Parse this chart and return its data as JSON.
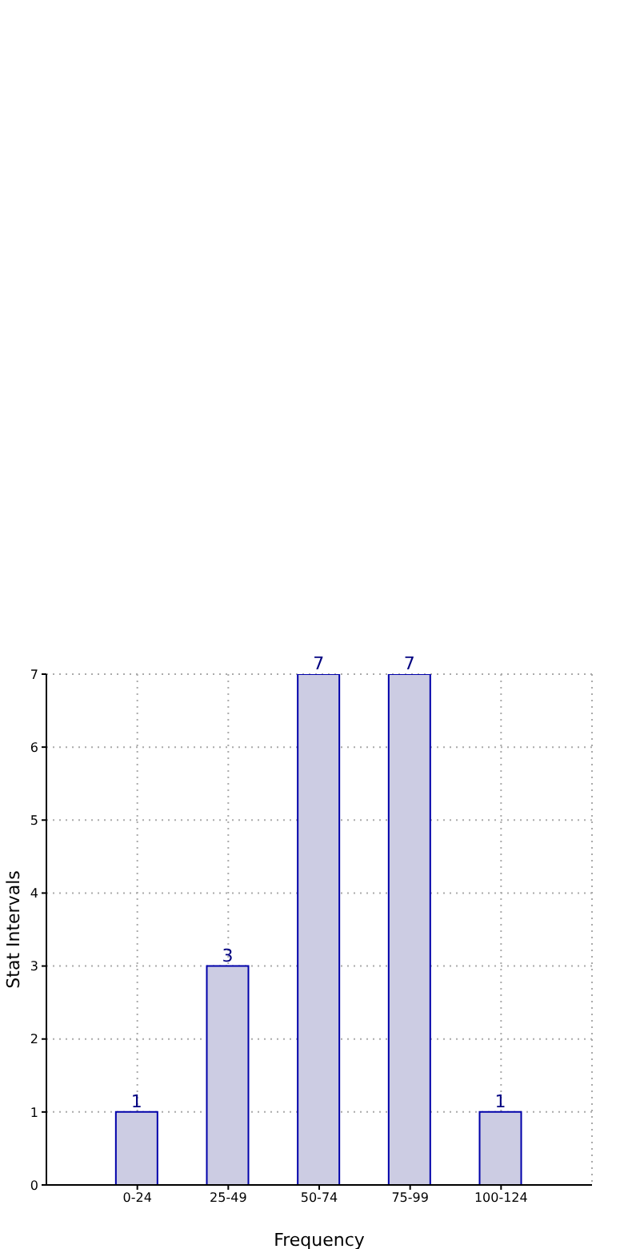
{
  "chart_data": {
    "type": "bar",
    "xlabel": "Frequency",
    "ylabel": "Stat Intervals",
    "categories": [
      "0-24",
      "25-49",
      "50-74",
      "75-99",
      "100-124"
    ],
    "values": [
      1,
      3,
      7,
      7,
      1
    ],
    "color": "#cccce3",
    "ylim": [
      0,
      7
    ],
    "yticks": [
      0,
      1,
      2,
      3,
      4,
      5,
      6,
      7
    ],
    "grid": true,
    "data_labels": true
  }
}
